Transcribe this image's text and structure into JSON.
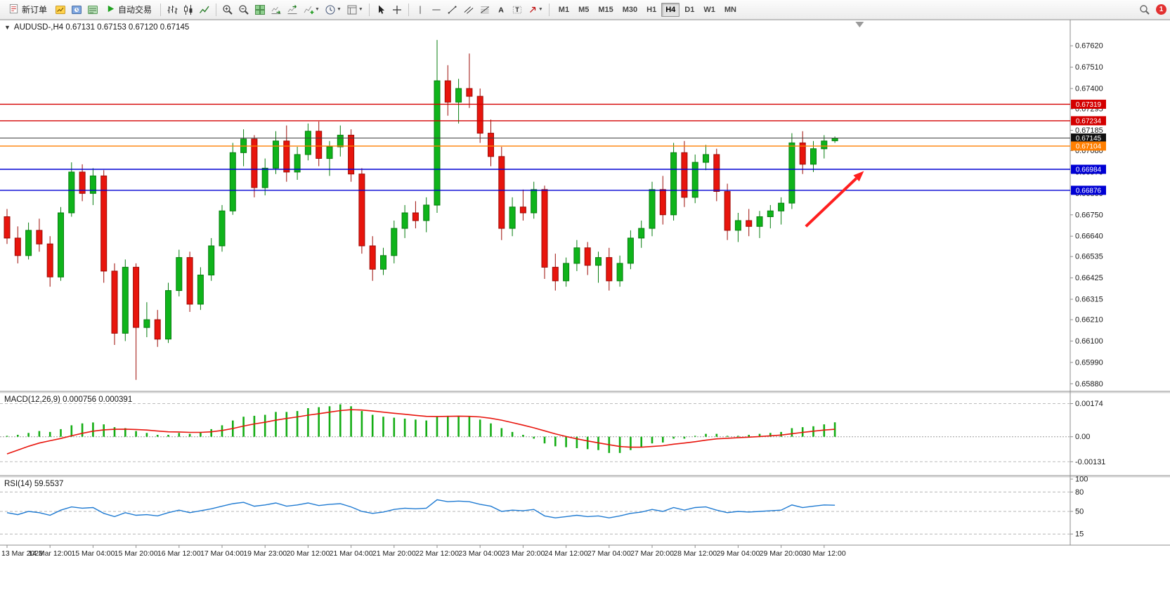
{
  "toolbar": {
    "new_order_label": "新订单",
    "auto_trading_label": "自动交易",
    "timeframes": [
      "M1",
      "M5",
      "M15",
      "M30",
      "H1",
      "H4",
      "D1",
      "W1",
      "MN"
    ],
    "active_timeframe": "H4",
    "notification_count": "1"
  },
  "chart_data": {
    "type": "candlestick",
    "symbol": "AUDUSD-",
    "timeframe": "H4",
    "ohlc_format": "[open,high,low,close]",
    "panels": {
      "price": {
        "title": "AUDUSD-,H4 0.67131 0.67153 0.67120 0.67145",
        "last_bar": {
          "open": 0.67131,
          "high": 0.67153,
          "low": 0.6712,
          "close": 0.67145
        },
        "y_range": [
          0.65845,
          0.6774
        ],
        "axis_labels": [
          "0.67620",
          "0.67510",
          "0.67400",
          "0.67295",
          "0.67185",
          "0.67080",
          "0.66970",
          "0.66860",
          "0.66750",
          "0.66640",
          "0.66535",
          "0.66425",
          "0.66315",
          "0.66210",
          "0.66100",
          "0.65990",
          "0.65880"
        ],
        "hlines": [
          {
            "value": 0.67319,
            "label": "0.67319",
            "color": "#d40000"
          },
          {
            "value": 0.67234,
            "label": "0.67234",
            "color": "#d40000"
          },
          {
            "value": 0.67104,
            "label": "0.67104",
            "color": "#ff7f00"
          },
          {
            "value": 0.66984,
            "label": "0.66984",
            "color": "#0000d4"
          },
          {
            "value": 0.66876,
            "label": "0.66876",
            "color": "#0000d4"
          }
        ],
        "current_price": {
          "value": 0.67145,
          "label": "0.67145",
          "color": "#111111"
        },
        "candles": [
          [
            0.6674,
            0.6678,
            0.666,
            0.6663
          ],
          [
            0.6663,
            0.6669,
            0.665,
            0.6654
          ],
          [
            0.6654,
            0.6671,
            0.6652,
            0.6667
          ],
          [
            0.6667,
            0.6673,
            0.6656,
            0.666
          ],
          [
            0.666,
            0.6664,
            0.6638,
            0.6643
          ],
          [
            0.6643,
            0.6679,
            0.6641,
            0.6676
          ],
          [
            0.6676,
            0.6702,
            0.6674,
            0.6697
          ],
          [
            0.6697,
            0.6701,
            0.6682,
            0.6686
          ],
          [
            0.6686,
            0.6699,
            0.668,
            0.6695
          ],
          [
            0.6695,
            0.6698,
            0.664,
            0.6646
          ],
          [
            0.6646,
            0.665,
            0.6608,
            0.6614
          ],
          [
            0.6614,
            0.6652,
            0.661,
            0.6648
          ],
          [
            0.6648,
            0.665,
            0.659,
            0.6617
          ],
          [
            0.6617,
            0.663,
            0.6612,
            0.6621
          ],
          [
            0.6621,
            0.6626,
            0.6607,
            0.6611
          ],
          [
            0.6611,
            0.664,
            0.6609,
            0.6636
          ],
          [
            0.6636,
            0.6657,
            0.6633,
            0.6653
          ],
          [
            0.6653,
            0.6656,
            0.6625,
            0.6629
          ],
          [
            0.6629,
            0.6648,
            0.6626,
            0.6644
          ],
          [
            0.6644,
            0.6663,
            0.6641,
            0.6659
          ],
          [
            0.6659,
            0.668,
            0.6656,
            0.6677
          ],
          [
            0.6677,
            0.6712,
            0.6675,
            0.6707
          ],
          [
            0.6707,
            0.6719,
            0.67,
            0.6714
          ],
          [
            0.6714,
            0.6716,
            0.6684,
            0.6689
          ],
          [
            0.6689,
            0.6704,
            0.6685,
            0.6699
          ],
          [
            0.6699,
            0.6718,
            0.6696,
            0.6713
          ],
          [
            0.6713,
            0.6721,
            0.6692,
            0.6697
          ],
          [
            0.6697,
            0.671,
            0.6693,
            0.6706
          ],
          [
            0.6706,
            0.6722,
            0.6703,
            0.6718
          ],
          [
            0.6718,
            0.6723,
            0.67,
            0.6704
          ],
          [
            0.6704,
            0.6713,
            0.6695,
            0.671
          ],
          [
            0.671,
            0.6721,
            0.6705,
            0.6716
          ],
          [
            0.6716,
            0.6719,
            0.6692,
            0.6696
          ],
          [
            0.6696,
            0.6699,
            0.6655,
            0.6659
          ],
          [
            0.6659,
            0.6664,
            0.6641,
            0.6647
          ],
          [
            0.6647,
            0.6658,
            0.6644,
            0.6654
          ],
          [
            0.6654,
            0.6672,
            0.665,
            0.6668
          ],
          [
            0.6668,
            0.668,
            0.6663,
            0.6676
          ],
          [
            0.6676,
            0.6682,
            0.6668,
            0.6672
          ],
          [
            0.6672,
            0.6684,
            0.6666,
            0.668
          ],
          [
            0.668,
            0.6765,
            0.6676,
            0.6744
          ],
          [
            0.6744,
            0.6752,
            0.6726,
            0.6733
          ],
          [
            0.6733,
            0.6745,
            0.6722,
            0.674
          ],
          [
            0.674,
            0.6758,
            0.673,
            0.6736
          ],
          [
            0.6736,
            0.674,
            0.6712,
            0.6717
          ],
          [
            0.6717,
            0.6724,
            0.67,
            0.6705
          ],
          [
            0.6705,
            0.671,
            0.6662,
            0.6668
          ],
          [
            0.6668,
            0.6684,
            0.6664,
            0.6679
          ],
          [
            0.6679,
            0.6688,
            0.6672,
            0.6676
          ],
          [
            0.6676,
            0.6692,
            0.6673,
            0.6688
          ],
          [
            0.6688,
            0.669,
            0.6642,
            0.6648
          ],
          [
            0.6648,
            0.6655,
            0.6636,
            0.6641
          ],
          [
            0.6641,
            0.6653,
            0.6638,
            0.665
          ],
          [
            0.665,
            0.6662,
            0.6646,
            0.6658
          ],
          [
            0.6658,
            0.6661,
            0.6644,
            0.6649
          ],
          [
            0.6649,
            0.6656,
            0.664,
            0.6653
          ],
          [
            0.6653,
            0.6658,
            0.6636,
            0.6641
          ],
          [
            0.6641,
            0.6654,
            0.6638,
            0.665
          ],
          [
            0.665,
            0.6667,
            0.6647,
            0.6663
          ],
          [
            0.6663,
            0.6672,
            0.6658,
            0.6668
          ],
          [
            0.6668,
            0.6692,
            0.6664,
            0.6688
          ],
          [
            0.6688,
            0.6695,
            0.667,
            0.6675
          ],
          [
            0.6675,
            0.6712,
            0.6672,
            0.6707
          ],
          [
            0.6707,
            0.6713,
            0.6679,
            0.6684
          ],
          [
            0.6684,
            0.6706,
            0.6681,
            0.6702
          ],
          [
            0.6702,
            0.6711,
            0.6698,
            0.6706
          ],
          [
            0.6706,
            0.6709,
            0.6682,
            0.6687
          ],
          [
            0.6687,
            0.6691,
            0.6662,
            0.6667
          ],
          [
            0.6667,
            0.6676,
            0.6661,
            0.6672
          ],
          [
            0.6672,
            0.6678,
            0.6664,
            0.6669
          ],
          [
            0.6669,
            0.6677,
            0.6663,
            0.6674
          ],
          [
            0.6674,
            0.668,
            0.6668,
            0.6677
          ],
          [
            0.6677,
            0.6684,
            0.667,
            0.6681
          ],
          [
            0.6681,
            0.6717,
            0.6678,
            0.6712
          ],
          [
            0.6712,
            0.6718,
            0.6696,
            0.6701
          ],
          [
            0.6701,
            0.6713,
            0.6697,
            0.6709
          ],
          [
            0.6709,
            0.6716,
            0.6704,
            0.6713
          ],
          [
            0.67131,
            0.67153,
            0.6712,
            0.67145
          ]
        ]
      },
      "macd": {
        "title": "MACD(12,26,9) 0.000756 0.000391",
        "y_range": [
          -0.002,
          0.0022
        ],
        "levels": [
          0.00174,
          -0.00131
        ],
        "axis_labels": [
          {
            "value": 0.00174,
            "label": "0.00174"
          },
          {
            "value": 0,
            "label": "0.00"
          },
          {
            "value": -0.00131,
            "label": "-0.00131"
          }
        ],
        "main": [
          5e-05,
          0.0001,
          0.0002,
          0.0003,
          0.00025,
          0.0004,
          0.0006,
          0.0007,
          0.00075,
          0.00065,
          0.0005,
          0.00045,
          0.0003,
          0.0002,
          0.0001,
          0.0001,
          0.0002,
          0.00015,
          0.00025,
          0.0004,
          0.0006,
          0.00085,
          0.00105,
          0.0011,
          0.00115,
          0.0013,
          0.0013,
          0.00135,
          0.0015,
          0.00155,
          0.0016,
          0.0017,
          0.0016,
          0.00135,
          0.00115,
          0.00105,
          0.001,
          0.00095,
          0.0009,
          0.00085,
          0.00105,
          0.0011,
          0.0011,
          0.00105,
          0.0009,
          0.0007,
          0.00045,
          0.00025,
          0.0001,
          -0.0001,
          -0.00035,
          -0.0005,
          -0.00055,
          -0.0006,
          -0.00065,
          -0.0007,
          -0.00085,
          -0.00085,
          -0.0007,
          -0.00055,
          -0.00035,
          -0.0003,
          -0.0001,
          -0.0001,
          5e-05,
          0.00015,
          0.00015,
          5e-05,
          5e-05,
          0.0001,
          0.00015,
          0.0002,
          0.00025,
          0.00045,
          0.0005,
          0.00055,
          0.00065,
          0.000756
        ],
        "signal": [
          -0.0009,
          -0.0007,
          -0.0005,
          -0.00033,
          -0.00021,
          -9e-05,
          5e-05,
          0.00018,
          0.00029,
          0.00036,
          0.00039,
          0.0004,
          0.00038,
          0.00035,
          0.0003,
          0.00026,
          0.00025,
          0.00023,
          0.00023,
          0.00026,
          0.00033,
          0.00043,
          0.00056,
          0.00067,
          0.00076,
          0.00087,
          0.00096,
          0.00104,
          0.00113,
          0.00121,
          0.00129,
          0.00137,
          0.00142,
          0.0014,
          0.00135,
          0.00129,
          0.00123,
          0.00118,
          0.00112,
          0.00107,
          0.00106,
          0.00107,
          0.00108,
          0.00107,
          0.00104,
          0.00097,
          0.00087,
          0.00074,
          0.00061,
          0.00047,
          0.00031,
          0.00015,
          1e-05,
          -0.00011,
          -0.00022,
          -0.00032,
          -0.00042,
          -0.00051,
          -0.00055,
          -0.00055,
          -0.00051,
          -0.00047,
          -0.00039,
          -0.00033,
          -0.00026,
          -0.00018,
          -0.00011,
          -8e-05,
          -5e-05,
          -2e-05,
          1e-05,
          5e-05,
          9e-05,
          0.00016,
          0.00023,
          0.00029,
          0.00035,
          0.000391
        ]
      },
      "rsi": {
        "title": "RSI(14) 59.5537",
        "y_range": [
          0,
          100
        ],
        "levels": [
          80,
          50,
          15
        ],
        "axis_labels": [
          {
            "value": 100,
            "label": "100"
          },
          {
            "value": 80,
            "label": "80"
          },
          {
            "value": 50,
            "label": "50"
          },
          {
            "value": 15,
            "label": "15"
          }
        ],
        "values": [
          48,
          45,
          50,
          48,
          44,
          52,
          57,
          55,
          56,
          47,
          42,
          48,
          44,
          45,
          43,
          48,
          52,
          48,
          51,
          54,
          58,
          62,
          64,
          58,
          60,
          63,
          58,
          60,
          63,
          59,
          61,
          62,
          57,
          50,
          47,
          49,
          53,
          55,
          54,
          55,
          68,
          65,
          66,
          65,
          61,
          58,
          50,
          52,
          51,
          53,
          43,
          40,
          42,
          44,
          42,
          43,
          40,
          43,
          47,
          49,
          53,
          50,
          56,
          52,
          56,
          57,
          52,
          48,
          50,
          49,
          50,
          51,
          52,
          60,
          56,
          58,
          60,
          59.5537
        ]
      }
    },
    "x_labels": [
      {
        "index": 0,
        "label": "13 Mar 2023"
      },
      {
        "index": 4,
        "label": "14 Mar 12:00"
      },
      {
        "index": 8,
        "label": "15 Mar 04:00"
      },
      {
        "index": 12,
        "label": "15 Mar 20:00"
      },
      {
        "index": 16,
        "label": "16 Mar 12:00"
      },
      {
        "index": 20,
        "label": "17 Mar 04:00"
      },
      {
        "index": 24,
        "label": "19 Mar 23:00"
      },
      {
        "index": 28,
        "label": "20 Mar 12:00"
      },
      {
        "index": 32,
        "label": "21 Mar 04:00"
      },
      {
        "index": 36,
        "label": "21 Mar 20:00"
      },
      {
        "index": 40,
        "label": "22 Mar 12:00"
      },
      {
        "index": 44,
        "label": "23 Mar 04:00"
      },
      {
        "index": 48,
        "label": "23 Mar 20:00"
      },
      {
        "index": 52,
        "label": "24 Mar 12:00"
      },
      {
        "index": 56,
        "label": "27 Mar 04:00"
      },
      {
        "index": 60,
        "label": "27 Mar 20:00"
      },
      {
        "index": 64,
        "label": "28 Mar 12:00"
      },
      {
        "index": 68,
        "label": "29 Mar 04:00"
      },
      {
        "index": 72,
        "label": "29 Mar 20:00"
      },
      {
        "index": 76,
        "label": "30 Mar 12:00"
      }
    ],
    "arrow_annotation": {
      "from_index": 74.3,
      "from_price": 0.6669,
      "to_index": 79.7,
      "to_price": 0.66975,
      "color": "#ff1f1f"
    },
    "shift_marker_index": 79.3,
    "colors": {
      "bull": "#0fb41b",
      "bull_stroke": "#077d0f",
      "bear": "#e8150d",
      "bear_stroke": "#9c0b06",
      "macd_hist": "#14ad14",
      "macd_signal": "#e8150d",
      "rsi_line": "#1e7ad2",
      "axis_text": "#1a1a1a",
      "current_price_line": "#3c3c3c"
    }
  }
}
